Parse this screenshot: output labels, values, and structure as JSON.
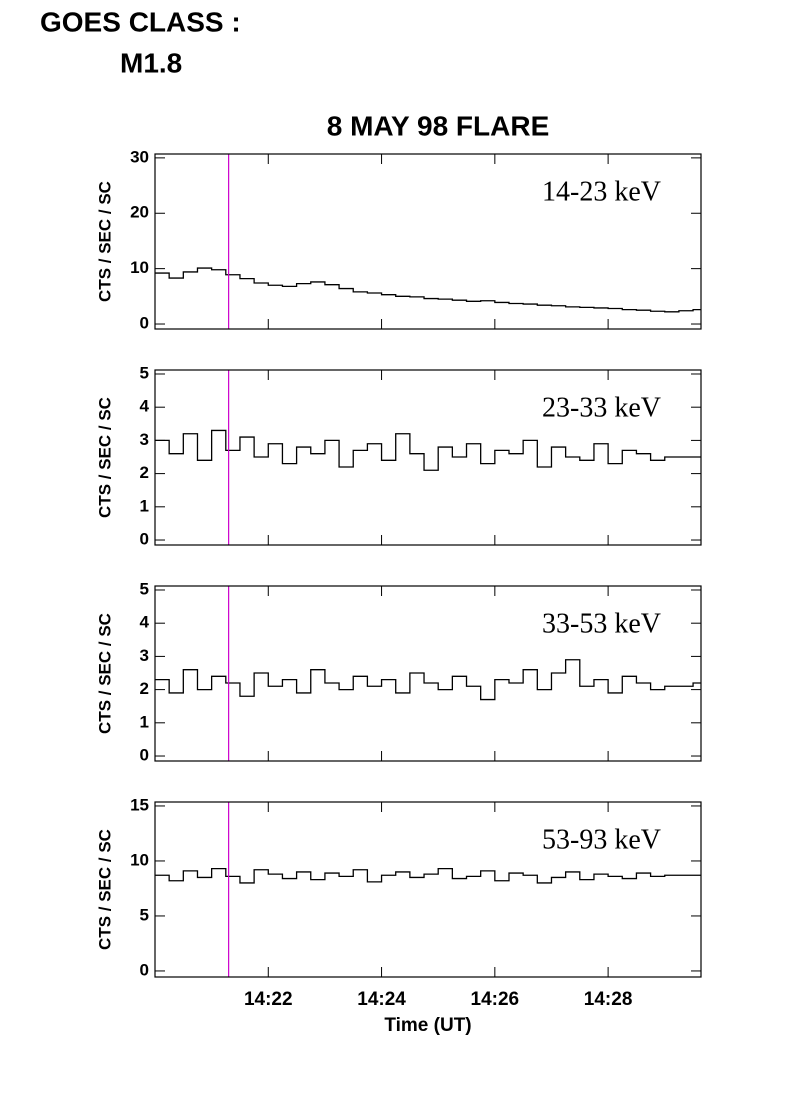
{
  "header": {
    "class_label": "GOES CLASS :",
    "class_value": "M1.8"
  },
  "chart_data": [
    {
      "type": "line",
      "title": "8 MAY 98 FLARE",
      "ylabel": "CTS / SEC / SC",
      "band": "14-23 keV",
      "xlim": [
        20.0,
        29.64
      ],
      "xticks": [
        22,
        24,
        26,
        28
      ],
      "ylim": [
        -0.9,
        30.7
      ],
      "yticks": [
        0,
        10,
        20,
        30
      ],
      "marker_x": 21.3,
      "marker_color": "#cc00cc",
      "x": [
        20,
        20.25,
        20.5,
        20.75,
        21,
        21.25,
        21.5,
        21.75,
        22,
        22.25,
        22.5,
        22.75,
        23,
        23.25,
        23.5,
        23.75,
        24,
        24.25,
        24.5,
        24.75,
        25,
        25.25,
        25.5,
        25.75,
        26,
        26.25,
        26.5,
        26.75,
        27,
        27.25,
        27.5,
        27.75,
        28,
        28.25,
        28.5,
        28.75,
        29,
        29.25,
        29.5
      ],
      "series": [
        {
          "name": "14-23 keV",
          "color": "#000000",
          "values": [
            9.2,
            8.3,
            9.4,
            10.1,
            9.8,
            8.9,
            8.2,
            7.4,
            7.0,
            6.8,
            7.3,
            7.6,
            7.1,
            6.4,
            5.8,
            5.6,
            5.3,
            5.0,
            4.9,
            4.6,
            4.5,
            4.3,
            4.1,
            4.2,
            3.9,
            3.7,
            3.6,
            3.4,
            3.3,
            3.1,
            3.0,
            2.9,
            2.8,
            2.6,
            2.5,
            2.3,
            2.2,
            2.4,
            2.6
          ]
        }
      ]
    },
    {
      "type": "line",
      "ylabel": "CTS / SEC / SC",
      "band": "23-33 keV",
      "xlim": [
        20.0,
        29.64
      ],
      "xticks": [
        22,
        24,
        26,
        28
      ],
      "ylim": [
        -0.15,
        5.12
      ],
      "yticks": [
        0,
        1,
        2,
        3,
        4,
        5
      ],
      "marker_x": 21.3,
      "marker_color": "#cc00cc",
      "x": [
        20,
        20.25,
        20.5,
        20.75,
        21,
        21.25,
        21.5,
        21.75,
        22,
        22.25,
        22.5,
        22.75,
        23,
        23.25,
        23.5,
        23.75,
        24,
        24.25,
        24.5,
        24.75,
        25,
        25.25,
        25.5,
        25.75,
        26,
        26.25,
        26.5,
        26.75,
        27,
        27.25,
        27.5,
        27.75,
        28,
        28.25,
        28.5,
        28.75,
        29,
        29.25,
        29.5
      ],
      "series": [
        {
          "name": "23-33 keV",
          "color": "#000000",
          "values": [
            3.0,
            2.6,
            3.2,
            2.4,
            3.3,
            2.7,
            3.1,
            2.5,
            2.9,
            2.3,
            2.8,
            2.6,
            3.0,
            2.2,
            2.7,
            2.9,
            2.4,
            3.2,
            2.6,
            2.1,
            2.8,
            2.5,
            2.9,
            2.3,
            2.7,
            2.6,
            3.0,
            2.2,
            2.8,
            2.5,
            2.4,
            2.9,
            2.3,
            2.7,
            2.6,
            2.4,
            2.5,
            2.5,
            2.5
          ]
        }
      ]
    },
    {
      "type": "line",
      "ylabel": "CTS / SEC / SC",
      "band": "33-53 keV",
      "xlim": [
        20.0,
        29.64
      ],
      "xticks": [
        22,
        24,
        26,
        28
      ],
      "ylim": [
        -0.15,
        5.12
      ],
      "yticks": [
        0,
        1,
        2,
        3,
        4,
        5
      ],
      "marker_x": 21.3,
      "marker_color": "#cc00cc",
      "x": [
        20,
        20.25,
        20.5,
        20.75,
        21,
        21.25,
        21.5,
        21.75,
        22,
        22.25,
        22.5,
        22.75,
        23,
        23.25,
        23.5,
        23.75,
        24,
        24.25,
        24.5,
        24.75,
        25,
        25.25,
        25.5,
        25.75,
        26,
        26.25,
        26.5,
        26.75,
        27,
        27.25,
        27.5,
        27.75,
        28,
        28.25,
        28.5,
        28.75,
        29,
        29.25,
        29.5
      ],
      "series": [
        {
          "name": "33-53 keV",
          "color": "#000000",
          "values": [
            2.3,
            1.9,
            2.6,
            2.0,
            2.4,
            2.2,
            1.8,
            2.5,
            2.1,
            2.3,
            1.9,
            2.6,
            2.2,
            2.0,
            2.4,
            2.1,
            2.3,
            1.9,
            2.5,
            2.2,
            2.0,
            2.4,
            2.1,
            1.7,
            2.3,
            2.2,
            2.6,
            2.0,
            2.5,
            2.9,
            2.1,
            2.3,
            1.9,
            2.4,
            2.2,
            2.0,
            2.1,
            2.1,
            2.2
          ]
        }
      ]
    },
    {
      "type": "line",
      "ylabel": "CTS / SEC / SC",
      "band": "53-93 keV",
      "xlabel": "Time (UT)",
      "xlim": [
        20.0,
        29.64
      ],
      "xticks": [
        {
          "value": 22,
          "label": "14:22"
        },
        {
          "value": 24,
          "label": "14:24"
        },
        {
          "value": 26,
          "label": "14:26"
        },
        {
          "value": 28,
          "label": "14:28"
        }
      ],
      "ylim": [
        -0.55,
        15.36
      ],
      "yticks": [
        0,
        5,
        10,
        15
      ],
      "marker_x": 21.3,
      "marker_color": "#cc00cc",
      "x": [
        20,
        20.25,
        20.5,
        20.75,
        21,
        21.25,
        21.5,
        21.75,
        22,
        22.25,
        22.5,
        22.75,
        23,
        23.25,
        23.5,
        23.75,
        24,
        24.25,
        24.5,
        24.75,
        25,
        25.25,
        25.5,
        25.75,
        26,
        26.25,
        26.5,
        26.75,
        27,
        27.25,
        27.5,
        27.75,
        28,
        28.25,
        28.5,
        28.75,
        29,
        29.25,
        29.5
      ],
      "series": [
        {
          "name": "53-93 keV",
          "color": "#000000",
          "values": [
            8.7,
            8.2,
            9.1,
            8.5,
            9.3,
            8.6,
            8.0,
            9.2,
            8.8,
            8.4,
            9.0,
            8.3,
            8.9,
            8.6,
            9.2,
            8.1,
            8.7,
            9.0,
            8.5,
            8.8,
            9.3,
            8.4,
            8.6,
            9.1,
            8.2,
            8.9,
            8.7,
            8.0,
            8.5,
            9.0,
            8.3,
            8.8,
            8.6,
            8.4,
            8.9,
            8.6,
            8.7,
            8.7,
            8.7
          ]
        }
      ]
    }
  ]
}
